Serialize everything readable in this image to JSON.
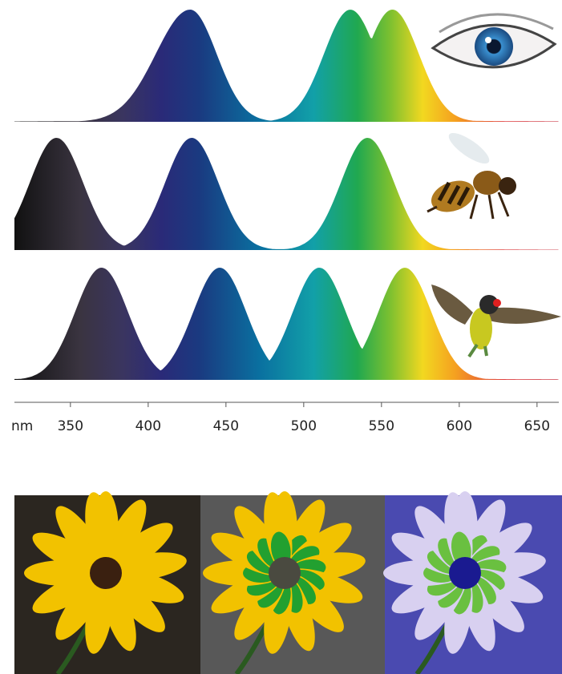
{
  "chart_data": {
    "type": "area",
    "x_label": "nm",
    "xlim": [
      314,
      664
    ],
    "xticks": [
      350,
      400,
      450,
      500,
      550,
      600,
      650
    ],
    "panels": [
      {
        "peaks": [
          427,
          530,
          557
        ]
      },
      {
        "peaks": [
          341,
          428,
          541
        ]
      },
      {
        "peaks": [
          370,
          446,
          510,
          565
        ]
      }
    ]
  }
}
